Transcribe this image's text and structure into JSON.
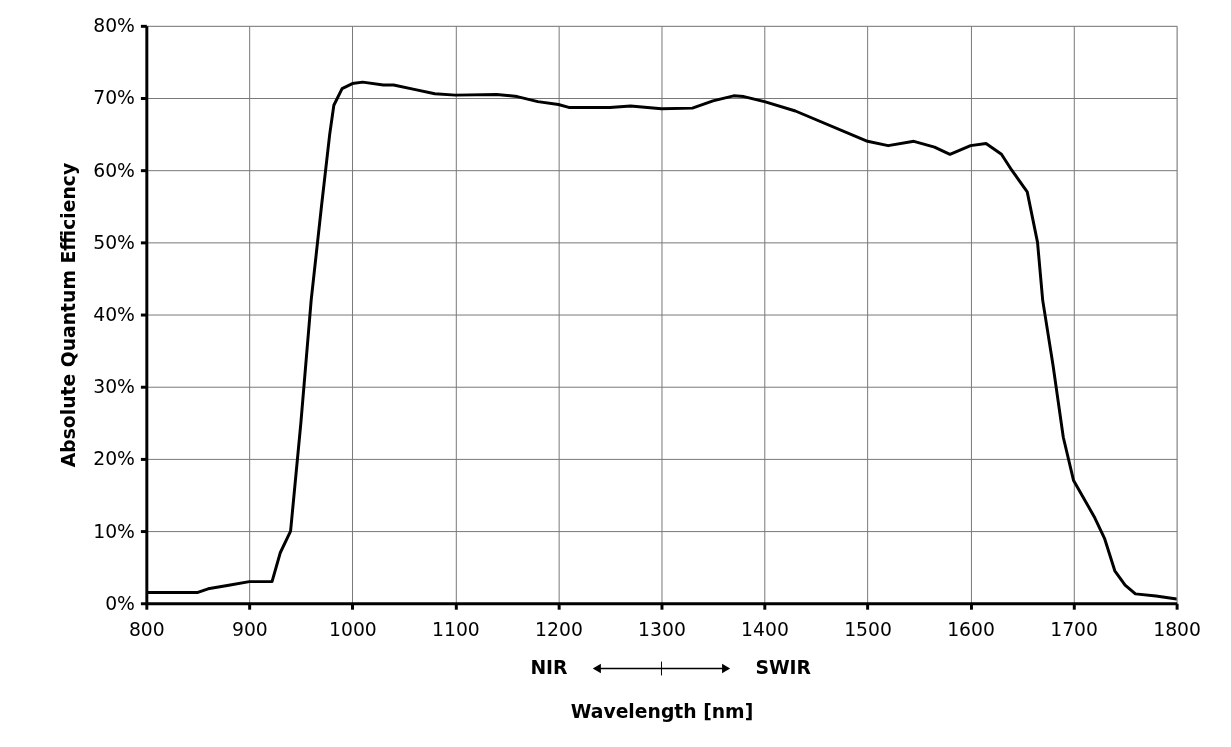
{
  "chart_data": {
    "type": "line",
    "xlabel": "Wavelength [nm]",
    "ylabel": "Absolute Quantum Efficiency",
    "x": [
      800,
      850,
      860,
      880,
      900,
      915,
      922,
      930,
      940,
      950,
      960,
      970,
      978,
      982,
      990,
      1000,
      1010,
      1030,
      1040,
      1060,
      1080,
      1100,
      1140,
      1160,
      1180,
      1200,
      1210,
      1250,
      1270,
      1300,
      1330,
      1350,
      1370,
      1380,
      1400,
      1430,
      1500,
      1520,
      1545,
      1565,
      1580,
      1600,
      1615,
      1630,
      1640,
      1655,
      1665,
      1670,
      1680,
      1690,
      1700,
      1720,
      1730,
      1740,
      1750,
      1760,
      1780,
      1800
    ],
    "series": [
      {
        "color": "#000000",
        "values": [
          1.5,
          1.5,
          2,
          2.5,
          3,
          3,
          3,
          7,
          10,
          25,
          42,
          55,
          65,
          69,
          71.3,
          72,
          72.2,
          71.8,
          71.8,
          71.2,
          70.6,
          70.4,
          70.5,
          70.2,
          69.5,
          69.1,
          68.7,
          68.7,
          68.9,
          68.5,
          68.6,
          69.6,
          70.3,
          70.2,
          69.5,
          68.2,
          64.0,
          63.4,
          64.0,
          63.2,
          62.2,
          63.4,
          63.7,
          62.2,
          60,
          57,
          50,
          42,
          33,
          23,
          17,
          12,
          9,
          4.5,
          2.5,
          1.3,
          1,
          0.6
        ]
      }
    ],
    "xlim": [
      800,
      1800
    ],
    "xticks": [
      800,
      900,
      {
        "value": 1000,
        "label": "1000"
      },
      {
        "value": 1100,
        "label": "1100"
      },
      {
        "value": 1200,
        "label": "1200"
      },
      {
        "value": 1300,
        "label": "1300"
      },
      {
        "value": 1400,
        "label": "1400"
      },
      {
        "value": 1500,
        "label": "1500"
      },
      {
        "value": 1600,
        "label": "1600"
      },
      {
        "value": 1700,
        "label": "1700"
      },
      {
        "value": 1800,
        "label": "1800"
      }
    ],
    "ylim": [
      0,
      80
    ],
    "yticks": [
      {
        "value": 0,
        "label": "0%"
      },
      {
        "value": 10,
        "label": "10%"
      },
      {
        "value": 20,
        "label": "20%"
      },
      {
        "value": 30,
        "label": "30%"
      },
      {
        "value": 40,
        "label": "40%"
      },
      {
        "value": 50,
        "label": "50%"
      },
      {
        "value": 60,
        "label": "60%"
      },
      {
        "value": 70,
        "label": "70%"
      },
      {
        "value": 80,
        "label": "80%"
      }
    ],
    "annotations": [
      "NIR",
      "SWIR"
    ],
    "grid": true,
    "line_style": "solid",
    "marker": "none"
  }
}
